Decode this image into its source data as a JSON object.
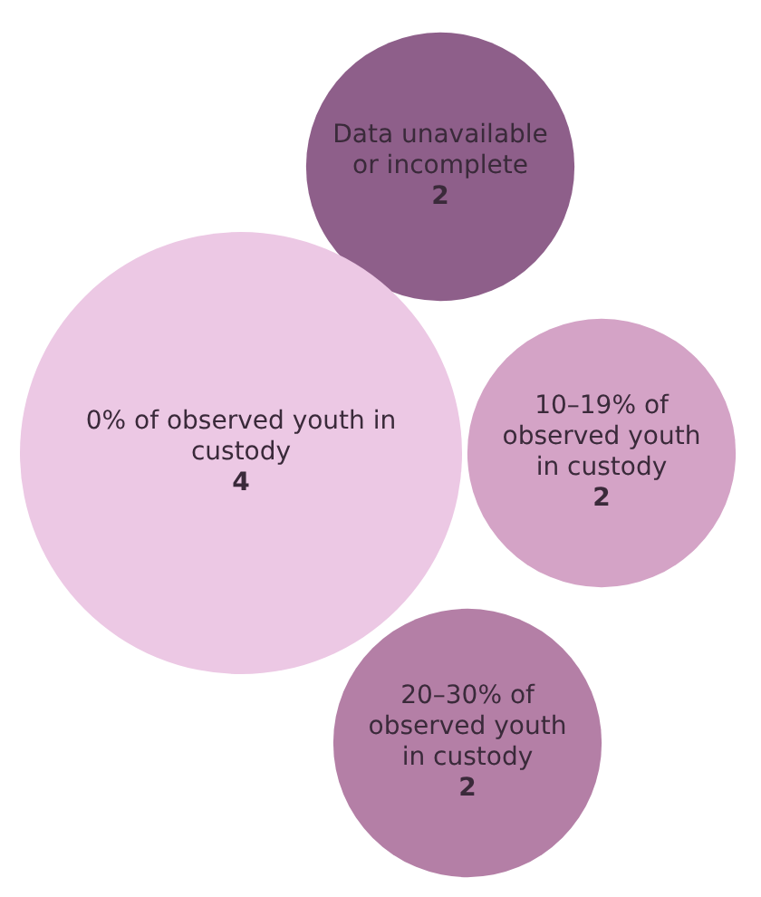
{
  "chart_data": {
    "type": "other",
    "categories": [
      "Data unavailable or incomplete",
      "0% of observed youth in custody",
      "10–19% of observed youth in custody",
      "20–30% of observed youth in custody"
    ],
    "values": [
      2,
      4,
      2,
      2
    ],
    "colors": [
      "#8e5f8a",
      "#ecc8e4",
      "#d4a3c6",
      "#b47fa6"
    ],
    "data_labels": true
  }
}
